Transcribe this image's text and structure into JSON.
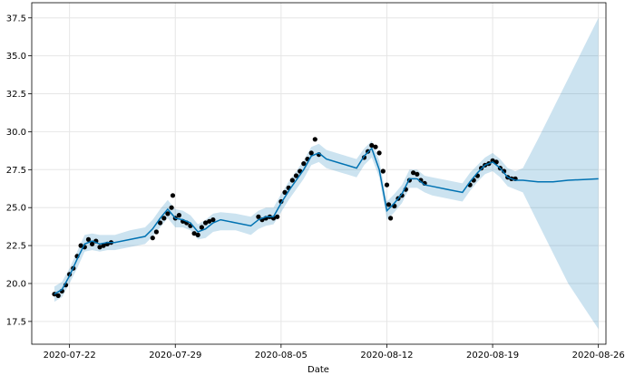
{
  "chart_data": {
    "type": "line",
    "title": "",
    "xlabel": "Date",
    "ylabel": "",
    "grid": true,
    "xlim": [
      "2020-07-19T12:00",
      "2020-08-26T12:00"
    ],
    "ylim": [
      16.0,
      38.5
    ],
    "x_ticks": [
      "2020-07-22",
      "2020-07-29",
      "2020-08-05",
      "2020-08-12",
      "2020-08-19",
      "2020-08-26"
    ],
    "y_ticks": [
      17.5,
      20.0,
      22.5,
      25.0,
      27.5,
      30.0,
      32.5,
      35.0,
      37.5
    ],
    "series": [
      {
        "kind": "forecast",
        "color": "#0072B2",
        "x": [
          "2020-07-21T00:00",
          "2020-07-21T12:00",
          "2020-07-22T00:00",
          "2020-07-22T12:00",
          "2020-07-23T00:00",
          "2020-07-23T12:00",
          "2020-07-24T00:00",
          "2020-07-24T12:00",
          "2020-07-25T00:00",
          "2020-07-26T00:00",
          "2020-07-27T00:00",
          "2020-07-27T12:00",
          "2020-07-28T00:00",
          "2020-07-28T12:00",
          "2020-07-29T00:00",
          "2020-07-29T12:00",
          "2020-07-30T00:00",
          "2020-07-30T12:00",
          "2020-07-31T00:00",
          "2020-07-31T12:00",
          "2020-08-01T00:00",
          "2020-08-02T00:00",
          "2020-08-03T00:00",
          "2020-08-03T12:00",
          "2020-08-04T00:00",
          "2020-08-04T12:00",
          "2020-08-05T00:00",
          "2020-08-05T12:00",
          "2020-08-06T00:00",
          "2020-08-06T12:00",
          "2020-08-07T00:00",
          "2020-08-07T12:00",
          "2020-08-08T00:00",
          "2020-08-09T00:00",
          "2020-08-10T00:00",
          "2020-08-10T12:00",
          "2020-08-11T00:00",
          "2020-08-11T12:00",
          "2020-08-12T00:00",
          "2020-08-12T12:00",
          "2020-08-13T00:00",
          "2020-08-13T12:00",
          "2020-08-14T00:00",
          "2020-08-14T12:00",
          "2020-08-15T00:00",
          "2020-08-16T00:00",
          "2020-08-17T00:00",
          "2020-08-17T12:00",
          "2020-08-18T00:00",
          "2020-08-18T12:00",
          "2020-08-19T00:00",
          "2020-08-19T12:00",
          "2020-08-20T00:00",
          "2020-08-20T12:00",
          "2020-08-21T00:00",
          "2020-08-22T00:00",
          "2020-08-23T00:00",
          "2020-08-24T00:00",
          "2020-08-25T00:00",
          "2020-08-26T00:00"
        ],
        "y": [
          19.3,
          19.6,
          20.5,
          21.6,
          22.6,
          22.8,
          22.6,
          22.7,
          22.7,
          22.9,
          23.1,
          23.6,
          24.3,
          24.9,
          24.3,
          24.2,
          24.0,
          23.4,
          23.6,
          24.0,
          24.2,
          24.0,
          23.8,
          24.2,
          24.4,
          24.4,
          25.3,
          26.1,
          26.8,
          27.5,
          28.4,
          28.6,
          28.2,
          27.9,
          27.6,
          28.4,
          28.9,
          27.5,
          24.8,
          25.3,
          25.9,
          26.9,
          26.9,
          26.5,
          26.4,
          26.2,
          26.0,
          26.7,
          27.3,
          27.8,
          28.0,
          27.6,
          27.0,
          26.8,
          26.8,
          26.7,
          26.7,
          26.8,
          26.85,
          26.9
        ],
        "lower": [
          18.8,
          19.1,
          20.0,
          21.0,
          22.1,
          22.2,
          22.1,
          22.2,
          22.2,
          22.4,
          22.6,
          23.1,
          23.7,
          24.3,
          23.7,
          23.7,
          23.5,
          22.9,
          23.0,
          23.4,
          23.5,
          23.5,
          23.2,
          23.6,
          23.8,
          23.9,
          24.7,
          25.5,
          26.2,
          26.9,
          27.8,
          28.0,
          27.6,
          27.3,
          27.0,
          27.8,
          28.3,
          27.0,
          24.2,
          24.7,
          25.3,
          26.3,
          26.3,
          26.0,
          25.8,
          25.6,
          25.4,
          26.1,
          26.7,
          27.2,
          27.4,
          27.0,
          26.4,
          26.2,
          26.0,
          24.0,
          22.0,
          20.0,
          18.5,
          17.0
        ],
        "upper": [
          19.8,
          20.1,
          21.0,
          22.1,
          23.2,
          23.3,
          23.2,
          23.2,
          23.2,
          23.5,
          23.7,
          24.2,
          24.9,
          25.5,
          24.9,
          24.8,
          24.5,
          23.9,
          24.2,
          24.6,
          24.7,
          24.6,
          24.4,
          24.8,
          25.0,
          25.0,
          25.9,
          26.7,
          27.4,
          28.1,
          29.0,
          29.2,
          28.8,
          28.5,
          28.2,
          28.9,
          29.4,
          28.1,
          25.4,
          25.9,
          26.5,
          27.5,
          27.5,
          27.1,
          27.0,
          26.8,
          26.6,
          27.3,
          27.8,
          28.3,
          28.6,
          28.2,
          27.6,
          27.4,
          27.6,
          29.5,
          31.5,
          33.5,
          35.5,
          37.5
        ]
      },
      {
        "kind": "observed",
        "color": "#000000",
        "x": [
          "2020-07-21T00:00",
          "2020-07-21T06:00",
          "2020-07-21T12:00",
          "2020-07-21T18:00",
          "2020-07-22T00:00",
          "2020-07-22T06:00",
          "2020-07-22T12:00",
          "2020-07-22T18:00",
          "2020-07-23T00:00",
          "2020-07-23T06:00",
          "2020-07-23T12:00",
          "2020-07-23T18:00",
          "2020-07-24T00:00",
          "2020-07-24T06:00",
          "2020-07-24T12:00",
          "2020-07-24T18:00",
          "2020-07-27T12:00",
          "2020-07-27T18:00",
          "2020-07-28T00:00",
          "2020-07-28T06:00",
          "2020-07-28T12:00",
          "2020-07-28T18:00",
          "2020-07-28T20:00",
          "2020-07-29T00:00",
          "2020-07-29T06:00",
          "2020-07-29T12:00",
          "2020-07-29T18:00",
          "2020-07-30T00:00",
          "2020-07-30T06:00",
          "2020-07-30T12:00",
          "2020-07-30T18:00",
          "2020-07-31T00:00",
          "2020-07-31T06:00",
          "2020-07-31T12:00",
          "2020-08-03T12:00",
          "2020-08-03T18:00",
          "2020-08-04T00:00",
          "2020-08-04T06:00",
          "2020-08-04T12:00",
          "2020-08-04T18:00",
          "2020-08-05T00:00",
          "2020-08-05T06:00",
          "2020-08-05T12:00",
          "2020-08-05T18:00",
          "2020-08-06T00:00",
          "2020-08-06T06:00",
          "2020-08-06T12:00",
          "2020-08-06T18:00",
          "2020-08-07T00:00",
          "2020-08-07T06:00",
          "2020-08-07T12:00",
          "2020-08-10T12:00",
          "2020-08-10T18:00",
          "2020-08-11T00:00",
          "2020-08-11T06:00",
          "2020-08-11T12:00",
          "2020-08-11T18:00",
          "2020-08-12T00:00",
          "2020-08-12T03:00",
          "2020-08-12T06:00",
          "2020-08-12T12:00",
          "2020-08-12T18:00",
          "2020-08-13T00:00",
          "2020-08-13T06:00",
          "2020-08-13T12:00",
          "2020-08-13T18:00",
          "2020-08-14T00:00",
          "2020-08-14T06:00",
          "2020-08-14T12:00",
          "2020-08-17T12:00",
          "2020-08-17T18:00",
          "2020-08-18T00:00",
          "2020-08-18T06:00",
          "2020-08-18T12:00",
          "2020-08-18T18:00",
          "2020-08-19T00:00",
          "2020-08-19T06:00",
          "2020-08-19T12:00",
          "2020-08-19T18:00",
          "2020-08-20T00:00",
          "2020-08-20T06:00",
          "2020-08-20T12:00"
        ],
        "y": [
          19.3,
          19.2,
          19.5,
          19.9,
          20.6,
          21.0,
          21.8,
          22.5,
          22.4,
          22.9,
          22.6,
          22.8,
          22.4,
          22.5,
          22.6,
          22.7,
          23.0,
          23.4,
          24.0,
          24.3,
          24.6,
          25.0,
          25.8,
          24.3,
          24.5,
          24.1,
          24.0,
          23.8,
          23.3,
          23.2,
          23.7,
          24.0,
          24.1,
          24.2,
          24.4,
          24.2,
          24.3,
          24.4,
          24.3,
          24.4,
          25.4,
          26.0,
          26.3,
          26.8,
          27.1,
          27.4,
          27.9,
          28.2,
          28.6,
          29.5,
          28.5,
          28.3,
          28.7,
          29.1,
          29.0,
          28.6,
          27.4,
          26.5,
          25.2,
          24.3,
          25.1,
          25.6,
          25.8,
          26.2,
          26.8,
          27.3,
          27.2,
          26.8,
          26.6,
          26.5,
          26.8,
          27.1,
          27.6,
          27.8,
          27.9,
          28.1,
          28.0,
          27.6,
          27.4,
          27.0,
          26.9,
          26.9
        ]
      }
    ]
  }
}
